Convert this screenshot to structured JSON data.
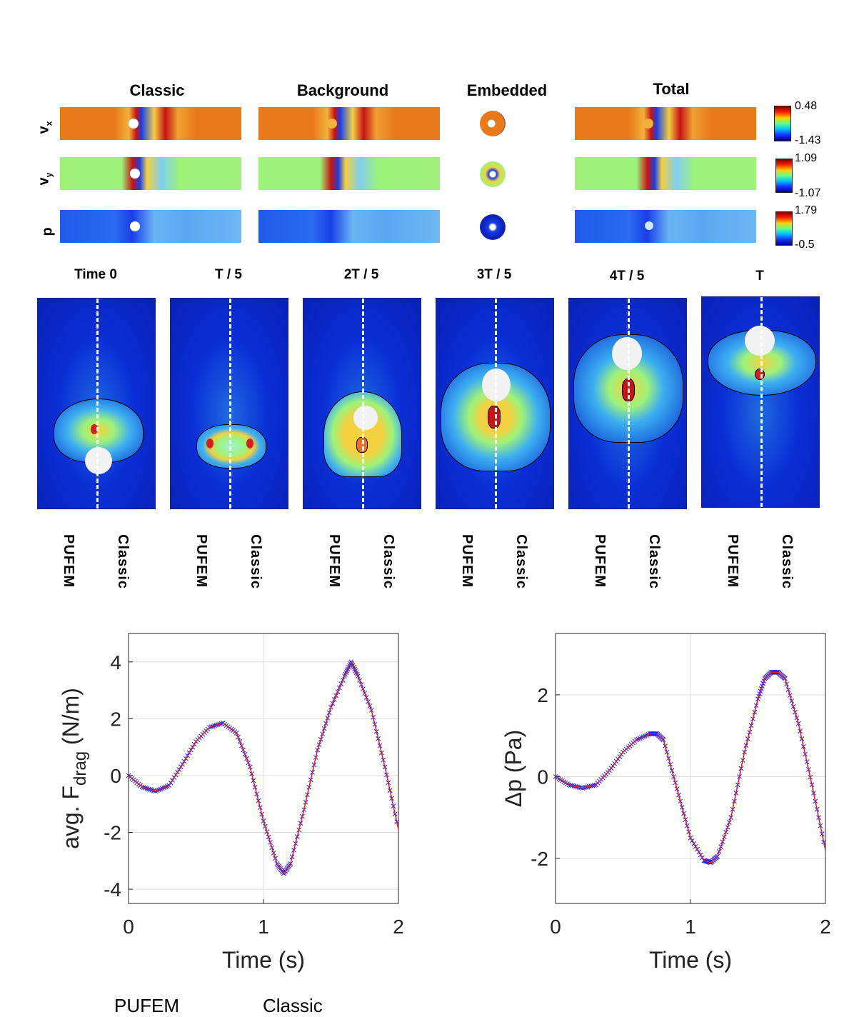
{
  "fields": {
    "columns": [
      "Classic",
      "Background",
      "Embedded",
      "Total"
    ],
    "rows": [
      {
        "label": "v",
        "sub": "x",
        "cmax": "0.48",
        "cmin": "-1.43"
      },
      {
        "label": "v",
        "sub": "y",
        "cmax": "1.09",
        "cmin": "-1.07"
      },
      {
        "label": "p",
        "sub": "",
        "cmax": "1.79",
        "cmin": "-0.5"
      }
    ]
  },
  "snapshots": {
    "times": [
      "Time 0",
      "T / 5",
      "2T / 5",
      "3T / 5",
      "4T / 5",
      "T"
    ],
    "left_label": "PUFEM",
    "right_label": "Classic"
  },
  "chart_data": [
    {
      "type": "line",
      "title": "",
      "xlabel": "Time (s)",
      "ylabel": "avg. F_drag (N/m)",
      "ylabel_main": "avg. F",
      "ylabel_sub": "drag",
      "ylabel_unit": " (N/m)",
      "xlim": [
        0,
        2
      ],
      "ylim": [
        -4.5,
        5
      ],
      "xticks": [
        0,
        1,
        2
      ],
      "yticks": [
        -4,
        -2,
        0,
        2,
        4
      ],
      "grid": true,
      "series": [
        {
          "name": "PUFEM",
          "marker": "x",
          "color": "#1a1aff",
          "x": [
            0,
            0.1,
            0.2,
            0.3,
            0.4,
            0.5,
            0.6,
            0.7,
            0.8,
            0.9,
            1.0,
            1.1,
            1.15,
            1.2,
            1.3,
            1.4,
            1.5,
            1.6,
            1.65,
            1.7,
            1.8,
            1.9,
            2.0
          ],
          "y": [
            0,
            -0.4,
            -0.55,
            -0.35,
            0.4,
            1.2,
            1.7,
            1.85,
            1.5,
            0.3,
            -1.6,
            -3.1,
            -3.45,
            -3.1,
            -1.2,
            0.9,
            2.4,
            3.5,
            4.0,
            3.5,
            2.3,
            0.3,
            -1.9
          ]
        },
        {
          "name": "Classic",
          "marker": "line",
          "color": "#e02020",
          "x": [
            0,
            0.1,
            0.2,
            0.3,
            0.4,
            0.5,
            0.6,
            0.7,
            0.8,
            0.9,
            1.0,
            1.1,
            1.15,
            1.2,
            1.3,
            1.4,
            1.5,
            1.6,
            1.65,
            1.7,
            1.8,
            1.9,
            2.0
          ],
          "y": [
            0,
            -0.4,
            -0.55,
            -0.35,
            0.4,
            1.2,
            1.7,
            1.85,
            1.5,
            0.3,
            -1.6,
            -3.1,
            -3.45,
            -3.1,
            -1.2,
            0.9,
            2.4,
            3.5,
            4.0,
            3.5,
            2.3,
            0.3,
            -1.9
          ]
        }
      ]
    },
    {
      "type": "line",
      "title": "",
      "xlabel": "Time (s)",
      "ylabel": "Δp (Pa)",
      "ylabel_main": "Δp (Pa)",
      "ylabel_sub": "",
      "ylabel_unit": "",
      "xlim": [
        0,
        2
      ],
      "ylim": [
        -3.1,
        3.5
      ],
      "xticks": [
        0,
        1,
        2
      ],
      "yticks": [
        -2,
        0,
        2
      ],
      "grid": true,
      "series": [
        {
          "name": "PUFEM",
          "marker": "x",
          "color": "#1a1aff",
          "x": [
            0,
            0.1,
            0.2,
            0.3,
            0.4,
            0.5,
            0.6,
            0.7,
            0.75,
            0.8,
            0.9,
            1.0,
            1.1,
            1.15,
            1.2,
            1.3,
            1.4,
            1.5,
            1.55,
            1.6,
            1.65,
            1.7,
            1.8,
            1.9,
            2.0
          ],
          "y": [
            0,
            -0.2,
            -0.28,
            -0.2,
            0.15,
            0.6,
            0.9,
            1.05,
            1.05,
            0.9,
            -0.3,
            -1.5,
            -2.05,
            -2.1,
            -1.95,
            -1.0,
            0.6,
            1.9,
            2.4,
            2.55,
            2.55,
            2.4,
            1.3,
            -0.2,
            -1.8
          ]
        },
        {
          "name": "Classic",
          "marker": "line",
          "color": "#e02020",
          "x": [
            0,
            0.1,
            0.2,
            0.3,
            0.4,
            0.5,
            0.6,
            0.7,
            0.75,
            0.8,
            0.9,
            1.0,
            1.1,
            1.15,
            1.2,
            1.3,
            1.4,
            1.5,
            1.55,
            1.6,
            1.65,
            1.7,
            1.8,
            1.9,
            2.0
          ],
          "y": [
            0,
            -0.2,
            -0.28,
            -0.2,
            0.15,
            0.6,
            0.9,
            1.05,
            1.05,
            0.9,
            -0.3,
            -1.5,
            -2.05,
            -2.1,
            -1.95,
            -1.0,
            0.6,
            1.9,
            2.4,
            2.55,
            2.55,
            2.4,
            1.3,
            -0.2,
            -1.8
          ]
        }
      ]
    }
  ],
  "legend": {
    "pufem": "PUFEM",
    "classic": "Classic"
  }
}
